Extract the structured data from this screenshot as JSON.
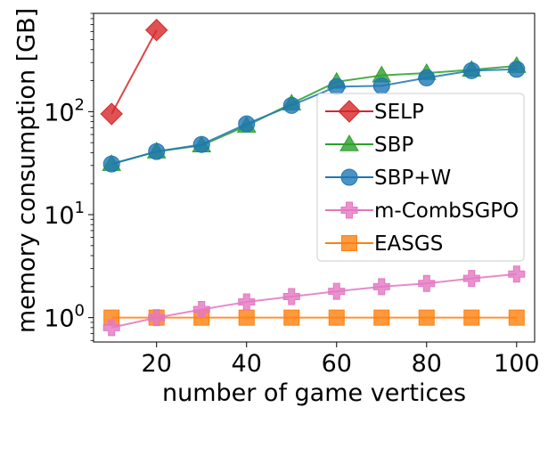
{
  "chart_data": {
    "type": "line",
    "title": "",
    "xlabel": "number of game vertices",
    "ylabel": "memory consumption [GB]",
    "yscale": "log",
    "xlim": [
      6,
      104
    ],
    "ylim": [
      0.58,
      900
    ],
    "x_ticks": [
      20,
      40,
      60,
      80,
      100
    ],
    "x_tick_labels": [
      "20",
      "40",
      "60",
      "80",
      "100"
    ],
    "y_ticks": [
      {
        "base": "10",
        "exp": "0",
        "value": 1
      },
      {
        "base": "10",
        "exp": "1",
        "value": 10
      },
      {
        "base": "10",
        "exp": "2",
        "value": 100
      }
    ],
    "legend_position": "center-right",
    "series": [
      {
        "name": "SELP",
        "color": "#d62728",
        "marker": "diamond",
        "x": [
          10,
          20
        ],
        "values": [
          95,
          620
        ]
      },
      {
        "name": "SBP",
        "color": "#2ca02c",
        "marker": "triangle",
        "x": [
          10,
          20,
          30,
          40,
          50,
          60,
          70,
          80,
          90,
          100
        ],
        "values": [
          31,
          41,
          47,
          73,
          120,
          195,
          225,
          237,
          255,
          278
        ]
      },
      {
        "name": "SBP+W",
        "color": "#1f77b4",
        "marker": "circle",
        "x": [
          10,
          20,
          30,
          40,
          50,
          60,
          70,
          80,
          90,
          100
        ],
        "values": [
          31,
          41,
          48,
          76,
          115,
          175,
          178,
          213,
          250,
          258
        ]
      },
      {
        "name": "m-CombSGPO",
        "color": "#e377c2",
        "marker": "plus",
        "x": [
          10,
          20,
          30,
          40,
          50,
          60,
          70,
          80,
          90,
          100
        ],
        "values": [
          0.8,
          1.0,
          1.2,
          1.42,
          1.6,
          1.8,
          2.0,
          2.15,
          2.4,
          2.65
        ]
      },
      {
        "name": "EASGS",
        "color": "#ff7f0e",
        "marker": "square",
        "x": [
          10,
          20,
          30,
          40,
          50,
          60,
          70,
          80,
          90,
          100
        ],
        "values": [
          1,
          1,
          1,
          1,
          1,
          1,
          1,
          1,
          1,
          1
        ]
      }
    ]
  }
}
